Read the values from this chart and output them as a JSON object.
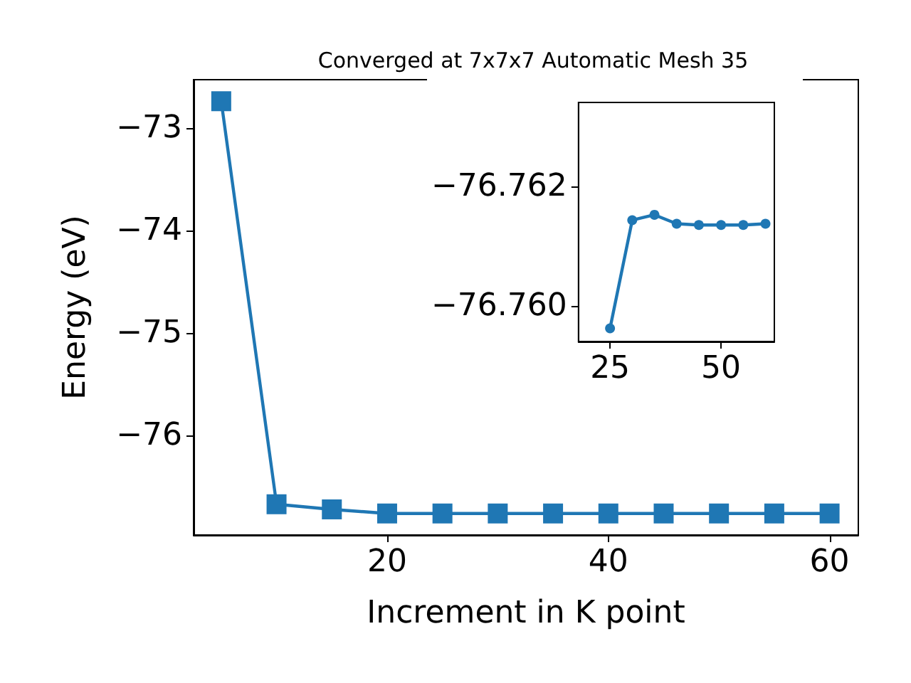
{
  "chart_data": [
    {
      "type": "line",
      "title": "Converged at 7x7x7 Automatic Mesh 35",
      "xlabel": "Increment in K point",
      "ylabel": "Energy (eV)",
      "x": [
        5,
        10,
        15,
        20,
        25,
        30,
        35,
        40,
        45,
        50,
        55,
        60
      ],
      "values": [
        -72.74,
        -76.67,
        -76.72,
        -76.76,
        -76.76,
        -76.76,
        -76.76,
        -76.76,
        -76.76,
        -76.76,
        -76.76,
        -76.76
      ],
      "color": "#1f77b4",
      "marker": "square",
      "line_style": "solid",
      "grid": false,
      "xlim": [
        2.5,
        62.6
      ],
      "ylim": [
        -76.97,
        -72.53
      ],
      "xticks": [
        20,
        40,
        60
      ],
      "yticks": [
        {
          "value": -76,
          "label": "−76"
        },
        {
          "value": -75,
          "label": "−75"
        },
        {
          "value": -74,
          "label": "−74"
        },
        {
          "value": -73,
          "label": "−73"
        }
      ]
    },
    {
      "type": "line",
      "x": [
        25,
        30,
        35,
        40,
        45,
        50,
        55,
        60
      ],
      "values": [
        -76.75962,
        -76.76143,
        -76.76152,
        -76.76137,
        -76.76135,
        -76.76135,
        -76.76135,
        -76.76137
      ],
      "color": "#1f77b4",
      "marker": "circle",
      "line_style": "solid",
      "grid": false,
      "xlim": [
        17.9,
        62
      ],
      "ylim": [
        -76.7594,
        -76.7634
      ],
      "xticks": [
        25,
        50
      ],
      "yticks": [
        {
          "value": -76.762,
          "label": "−76.762"
        },
        {
          "value": -76.76,
          "label": "−76.760"
        }
      ]
    }
  ]
}
